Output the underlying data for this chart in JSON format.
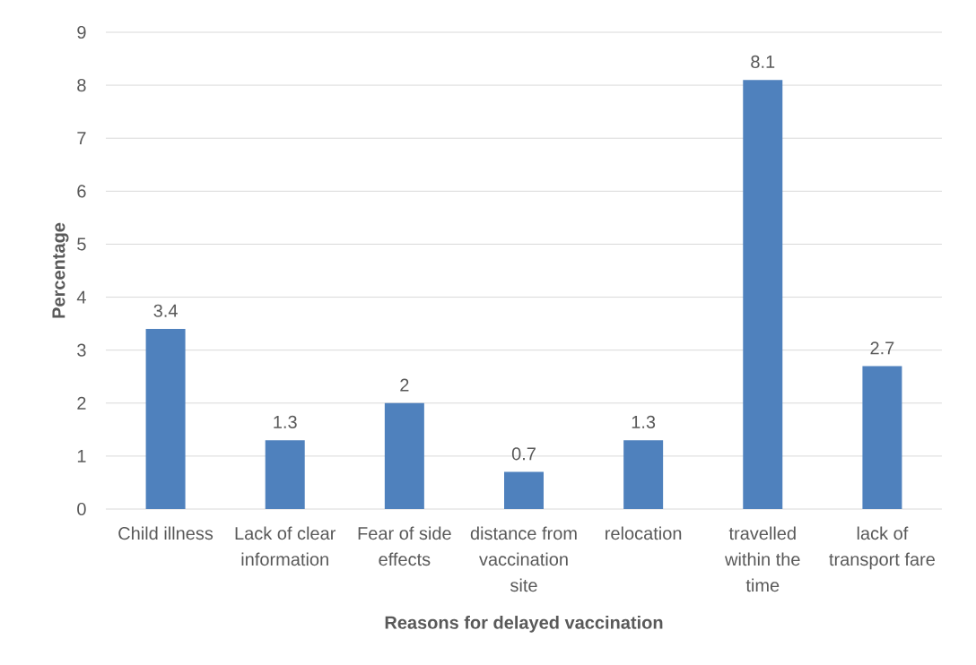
{
  "chart_data": {
    "type": "bar",
    "xlabel": "Reasons for delayed vaccination",
    "ylabel": "Percentage",
    "categories": [
      "Child illness",
      "Lack of clear information",
      "Fear of side effects",
      "distance from vaccination site",
      "relocation",
      "travelled within the time",
      "lack of transport fare"
    ],
    "values": [
      3.4,
      1.3,
      2,
      0.7,
      1.3,
      8.1,
      2.7
    ],
    "color": "#4f81bd",
    "ylim": [
      0,
      9
    ],
    "yticks": [
      0,
      1,
      2,
      3,
      4,
      5,
      6,
      7,
      8,
      9
    ],
    "grid": "y",
    "data_labels": true
  }
}
